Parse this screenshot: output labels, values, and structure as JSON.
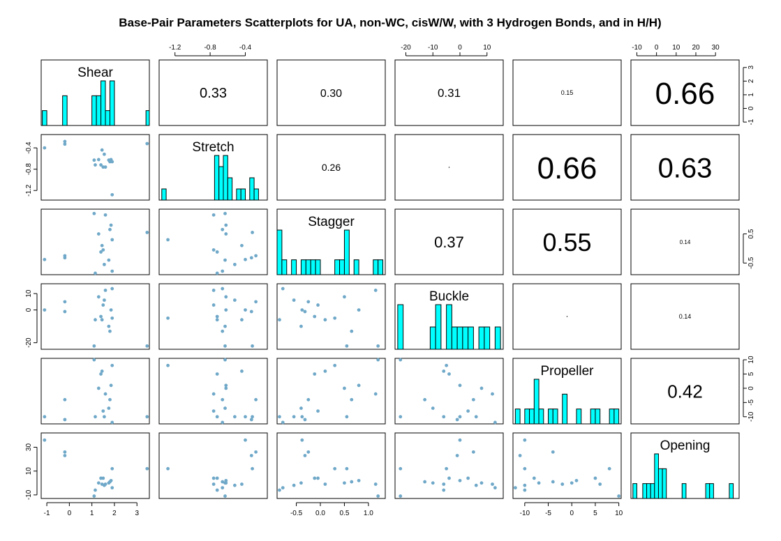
{
  "chart_data": {
    "type": "scatter",
    "title": "Base-Pair Parameters Scatterplots for UA, non-WC, cisW/W, with 3 Hydrogen Bonds, and in H/H)",
    "variables": [
      "Shear",
      "Stretch",
      "Stagger",
      "Buckle",
      "Propeller",
      "Opening"
    ],
    "ranges": {
      "Shear": [
        -1.25,
        3.55
      ],
      "Stretch": [
        -1.38,
        -0.15
      ],
      "Stagger": [
        -0.9,
        1.35
      ],
      "Buckle": [
        -24,
        16
      ],
      "Propeller": [
        -12.5,
        10.5
      ],
      "Opening": [
        -13,
        42
      ]
    },
    "ticks": {
      "Shear": [
        -1,
        0,
        1,
        2,
        3
      ],
      "Stretch": [
        -1.2,
        -0.8,
        -0.4
      ],
      "Stagger": [
        -0.5,
        0.0,
        0.5,
        1.0
      ],
      "Buckle": [
        -20,
        -10,
        0,
        10
      ],
      "Propeller": [
        -10,
        -5,
        0,
        5,
        10
      ],
      "Opening": [
        -10,
        10,
        30
      ]
    },
    "tick_labels": {
      "Shear": [
        "-1",
        "0",
        "1",
        "2",
        "3"
      ],
      "Stretch": [
        "-1.2",
        "-0.8",
        "-0.4"
      ],
      "Stagger": [
        "-0.5",
        "0.0",
        "0.5",
        "1.0"
      ],
      "Buckle": [
        "-20",
        "-10",
        "0",
        "10"
      ],
      "Propeller": [
        "-10",
        "-5",
        "0",
        "5",
        "10"
      ],
      "Opening": [
        "-10",
        "10",
        "30"
      ]
    },
    "right_axis_ticks": {
      "Shear": [
        -1,
        0,
        1,
        2,
        3
      ],
      "Stagger": [
        -0.5,
        0.5
      ],
      "Propeller": [
        -10,
        -5,
        0,
        5,
        10
      ]
    },
    "right_axis_tick_labels": {
      "Shear": [
        "-1",
        "0",
        "1",
        "2",
        "3"
      ],
      "Stagger": [
        "-0.5",
        "0.5"
      ],
      "Propeller": [
        "-10",
        "-5",
        "0",
        "5",
        "10"
      ]
    },
    "left_axis_ticks": {
      "Stretch": [
        -1.2,
        -0.8,
        -0.4
      ],
      "Buckle": [
        -20,
        0,
        10
      ],
      "Opening": [
        -10,
        10,
        30
      ]
    },
    "left_axis_tick_labels": {
      "Stretch": [
        "-1.2",
        "-0.8",
        "-0.4"
      ],
      "Buckle": [
        "-20",
        "0",
        "10"
      ],
      "Opening": [
        "-10",
        "10",
        "30"
      ]
    },
    "top_axis_tick_labels": {
      "Stretch": [
        "-1.2",
        "-0.8",
        "-0.4"
      ],
      "Buckle": [
        "-20",
        "-10",
        "0",
        "10"
      ],
      "Opening": [
        "-10",
        "0",
        "10",
        "20",
        "30"
      ]
    },
    "top_axis_ticks": {
      "Opening": [
        -10,
        0,
        10,
        20,
        30
      ]
    },
    "bottom_axis_vars": [
      "Shear",
      "Stagger",
      "Propeller"
    ],
    "observations": [
      {
        "Shear": -1.1,
        "Stretch": -0.4,
        "Stagger": -0.38,
        "Buckle": 0,
        "Propeller": -10,
        "Opening": 36
      },
      {
        "Shear": -0.2,
        "Stretch": -0.28,
        "Stagger": -0.25,
        "Buckle": 5,
        "Propeller": -4,
        "Opening": 26
      },
      {
        "Shear": -0.2,
        "Stretch": -0.33,
        "Stagger": -0.32,
        "Buckle": -1,
        "Propeller": -11,
        "Opening": 23
      },
      {
        "Shear": 1.1,
        "Stretch": -0.63,
        "Stagger": 1.2,
        "Buckle": -22,
        "Propeller": 10,
        "Opening": -11
      },
      {
        "Shear": 1.15,
        "Stretch": -0.72,
        "Stagger": -0.85,
        "Buckle": -6,
        "Propeller": -10,
        "Opening": -6
      },
      {
        "Shear": 1.3,
        "Stretch": -0.62,
        "Stagger": 0.5,
        "Buckle": 8,
        "Propeller": 0,
        "Opening": 0
      },
      {
        "Shear": 1.4,
        "Stretch": -0.72,
        "Stagger": -0.12,
        "Buckle": -4,
        "Propeller": 5,
        "Opening": 4
      },
      {
        "Shear": 1.45,
        "Stretch": -0.44,
        "Stagger": 0.1,
        "Buckle": -6,
        "Propeller": 6,
        "Opening": -1
      },
      {
        "Shear": 1.5,
        "Stretch": -0.76,
        "Stagger": -0.05,
        "Buckle": 3,
        "Propeller": -8,
        "Opening": 4
      },
      {
        "Shear": 1.55,
        "Stretch": -0.52,
        "Stagger": -0.55,
        "Buckle": 6,
        "Propeller": -10,
        "Opening": -2
      },
      {
        "Shear": 1.6,
        "Stretch": -0.76,
        "Stagger": 1.15,
        "Buckle": 12,
        "Propeller": -2,
        "Opening": -1
      },
      {
        "Shear": 1.75,
        "Stretch": -0.63,
        "Stagger": -0.4,
        "Buckle": -10,
        "Propeller": -7,
        "Opening": 0
      },
      {
        "Shear": 1.8,
        "Stretch": -0.66,
        "Stagger": 0.65,
        "Buckle": -13,
        "Propeller": -4,
        "Opening": 1
      },
      {
        "Shear": 1.85,
        "Stretch": -0.62,
        "Stagger": 0.8,
        "Buckle": 0,
        "Propeller": 1,
        "Opening": 2
      },
      {
        "Shear": 1.9,
        "Stretch": -0.66,
        "Stagger": -0.78,
        "Buckle": 13,
        "Propeller": -12,
        "Opening": -4
      },
      {
        "Shear": 1.9,
        "Stretch": -1.28,
        "Stagger": 0.3,
        "Buckle": -5,
        "Propeller": 8,
        "Opening": 12
      },
      {
        "Shear": 3.45,
        "Stretch": -0.32,
        "Stagger": 0.55,
        "Buckle": -22,
        "Propeller": -10,
        "Opening": 12
      }
    ],
    "correlations": [
      {
        "row": "Shear",
        "col": "Stretch",
        "label": "0.33",
        "size": 20
      },
      {
        "row": "Shear",
        "col": "Stagger",
        "label": "0.30",
        "size": 16
      },
      {
        "row": "Shear",
        "col": "Buckle",
        "label": "0.31",
        "size": 17
      },
      {
        "row": "Shear",
        "col": "Propeller",
        "label": "0.15",
        "size": 9
      },
      {
        "row": "Shear",
        "col": "Opening",
        "label": "0.66",
        "size": 44
      },
      {
        "row": "Stretch",
        "col": "Stagger",
        "label": "0.26",
        "size": 14
      },
      {
        "row": "Stretch",
        "col": "Buckle",
        "label": "",
        "size": 2
      },
      {
        "row": "Stretch",
        "col": "Propeller",
        "label": "0.66",
        "size": 44
      },
      {
        "row": "Stretch",
        "col": "Opening",
        "label": "0.63",
        "size": 40
      },
      {
        "row": "Stagger",
        "col": "Buckle",
        "label": "0.37",
        "size": 22
      },
      {
        "row": "Stagger",
        "col": "Propeller",
        "label": "0.55",
        "size": 36
      },
      {
        "row": "Stagger",
        "col": "Opening",
        "label": "0.14",
        "size": 8
      },
      {
        "row": "Buckle",
        "col": "Propeller",
        "label": "",
        "size": 2
      },
      {
        "row": "Buckle",
        "col": "Opening",
        "label": "0.14",
        "size": 9
      },
      {
        "row": "Propeller",
        "col": "Opening",
        "label": "0.42",
        "size": 26
      }
    ],
    "histograms": {
      "Shear": {
        "bins": [
          [
            -1.2,
            -1.0,
            1
          ],
          [
            -0.3,
            -0.1,
            2
          ],
          [
            1.0,
            1.2,
            2
          ],
          [
            1.2,
            1.4,
            2
          ],
          [
            1.4,
            1.6,
            3
          ],
          [
            1.6,
            1.8,
            1
          ],
          [
            1.8,
            2.0,
            3
          ],
          [
            3.4,
            3.6,
            1
          ]
        ],
        "max": 3
      },
      "Stretch": {
        "bins": [
          [
            -1.35,
            -1.3,
            1
          ],
          [
            -0.75,
            -0.7,
            4
          ],
          [
            -0.7,
            -0.65,
            3
          ],
          [
            -0.65,
            -0.6,
            4
          ],
          [
            -0.6,
            -0.55,
            2
          ],
          [
            -0.5,
            -0.45,
            1
          ],
          [
            -0.45,
            -0.4,
            1
          ],
          [
            -0.35,
            -0.3,
            2
          ],
          [
            -0.3,
            -0.25,
            1
          ]
        ],
        "max": 4
      },
      "Stagger": {
        "bins": [
          [
            -0.9,
            -0.8,
            3
          ],
          [
            -0.8,
            -0.7,
            1
          ],
          [
            -0.6,
            -0.5,
            1
          ],
          [
            -0.4,
            -0.3,
            1
          ],
          [
            -0.3,
            -0.2,
            1
          ],
          [
            -0.2,
            -0.1,
            1
          ],
          [
            -0.1,
            0.0,
            1
          ],
          [
            0.3,
            0.4,
            1
          ],
          [
            0.4,
            0.5,
            1
          ],
          [
            0.5,
            0.6,
            3
          ],
          [
            0.7,
            0.8,
            1
          ],
          [
            1.1,
            1.2,
            1
          ],
          [
            1.2,
            1.3,
            1
          ]
        ],
        "max": 3
      },
      "Buckle": {
        "bins": [
          [
            -23,
            -21,
            2
          ],
          [
            -11,
            -9,
            1
          ],
          [
            -9,
            -7,
            2
          ],
          [
            -5,
            -3,
            2
          ],
          [
            -3,
            -1,
            1
          ],
          [
            -1,
            1,
            1
          ],
          [
            1,
            3,
            1
          ],
          [
            3,
            5,
            1
          ],
          [
            7,
            9,
            1
          ],
          [
            9,
            11,
            1
          ],
          [
            13,
            15,
            1
          ]
        ],
        "max": 2
      },
      "Propeller": {
        "bins": [
          [
            -12,
            -11,
            1
          ],
          [
            -10,
            -9,
            1
          ],
          [
            -9,
            -8,
            1
          ],
          [
            -8,
            -7,
            3
          ],
          [
            -7,
            -6,
            1
          ],
          [
            -5,
            -4,
            1
          ],
          [
            -4,
            -3,
            1
          ],
          [
            -2,
            -1,
            2
          ],
          [
            1,
            2,
            1
          ],
          [
            4,
            5,
            1
          ],
          [
            5,
            6,
            1
          ],
          [
            8,
            9,
            1
          ],
          [
            9,
            10,
            1
          ]
        ],
        "max": 3
      },
      "Opening": {
        "bins": [
          [
            -12,
            -10,
            1
          ],
          [
            -7,
            -5,
            1
          ],
          [
            -5,
            -3,
            1
          ],
          [
            -3,
            -1,
            1
          ],
          [
            -1,
            1,
            3
          ],
          [
            1,
            3,
            2
          ],
          [
            3,
            5,
            2
          ],
          [
            13,
            15,
            1
          ],
          [
            25,
            27,
            1
          ],
          [
            27,
            29,
            1
          ],
          [
            37,
            39,
            1
          ]
        ],
        "max": 3
      }
    },
    "point_color": "#6fa8c8",
    "bar_color": "#00ffff",
    "grid": false
  }
}
